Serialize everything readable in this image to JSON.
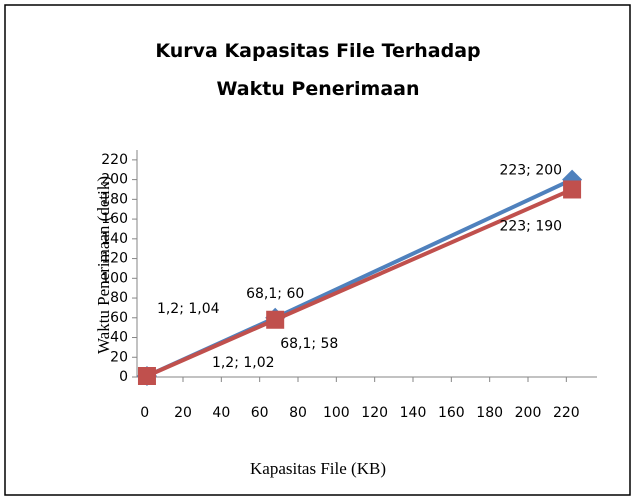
{
  "chart_data": {
    "type": "line",
    "title": "Kurva Kapasitas File Terhadap Waktu Penerimaan",
    "xlabel": "Kapasitas File (KB)",
    "ylabel": "Waktu Penerimaan (detik)",
    "x": [
      1.2,
      68.1,
      223
    ],
    "series": [
      {
        "color": "#4f81bd",
        "marker": "diamond",
        "values": [
          1.04,
          60,
          200
        ],
        "value_labels": [
          "1,2; 1,04",
          "68,1; 60",
          "223; 200"
        ]
      },
      {
        "color": "#c0504d",
        "marker": "square",
        "values": [
          1.02,
          58,
          190
        ],
        "value_labels": [
          "1,2; 1,02",
          "68,1; 58",
          "223; 190"
        ]
      }
    ],
    "xlim": [
      -4,
      236
    ],
    "xticks": [
      0,
      20,
      40,
      60,
      80,
      100,
      120,
      140,
      160,
      180,
      200,
      220
    ],
    "ylim": [
      0,
      230
    ],
    "yticks": [
      0,
      20,
      40,
      60,
      80,
      100,
      120,
      140,
      160,
      180,
      200,
      220
    ],
    "grid": false
  }
}
